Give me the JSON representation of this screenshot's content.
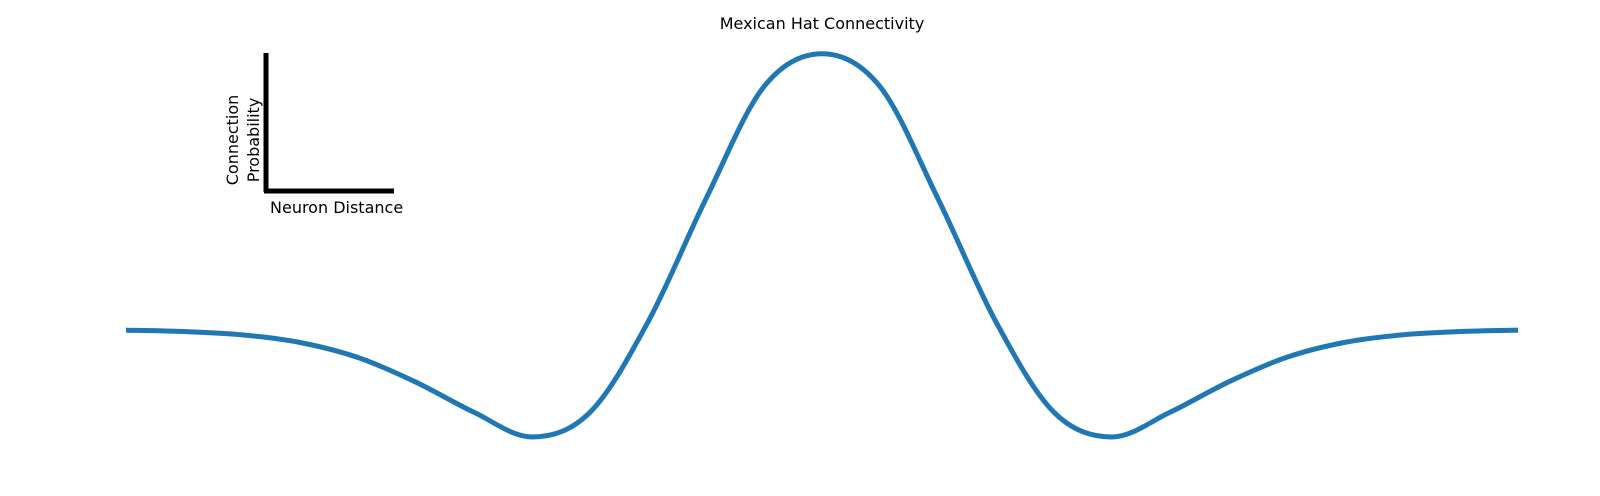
{
  "chart_data": {
    "type": "line",
    "title": "Mexican Hat Connectivity",
    "xlabel": "Neuron Distance",
    "ylabel": "Connection Probability",
    "xlim": [
      -3,
      3
    ],
    "ylim": [
      -0.55,
      1.05
    ],
    "grid": false,
    "axes_visible": false,
    "series": [
      {
        "color": "#1f77b4",
        "x": [
          -3.0,
          -2.75,
          -2.5,
          -2.25,
          -2.0,
          -1.75,
          -1.5,
          -1.25,
          -1.0,
          -0.75,
          -0.5,
          -0.25,
          0.0,
          0.25,
          0.5,
          0.75,
          1.0,
          1.25,
          1.5,
          1.75,
          2.0,
          2.25,
          2.5,
          2.75,
          3.0
        ],
        "y": [
          -0.01,
          -0.015,
          -0.027,
          -0.055,
          -0.11,
          -0.2,
          -0.31,
          -0.4,
          -0.31,
          0.02,
          0.47,
          0.88,
          1.0,
          0.88,
          0.47,
          0.02,
          -0.31,
          -0.4,
          -0.31,
          -0.2,
          -0.11,
          -0.055,
          -0.027,
          -0.015,
          -0.01
        ]
      }
    ]
  },
  "scale_bar": {
    "ylabel_lines": [
      "Connection",
      "Probability"
    ],
    "xlabel": "Neuron Distance"
  }
}
